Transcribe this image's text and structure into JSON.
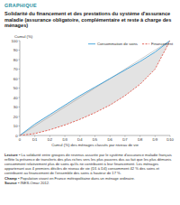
{
  "chart_data": {
    "type": "line",
    "kicker": "GRAPHIQUE",
    "title": "Solidarité du financement et des prestations du système d'assurance maladie (assurance obligatoire, complémentaire et reste à charge des ménages)",
    "y_label": "Cumul (%)",
    "x_label": "Cumul (%) des ménages classés par niveau de vie",
    "categories": [
      "0",
      "D1",
      "D2",
      "D3",
      "D4",
      "D5",
      "D6",
      "D7",
      "D8",
      "D9",
      "D10"
    ],
    "series": [
      {
        "name": "Consommation de soins",
        "color": "#3a9fd8",
        "line_style": "solid",
        "values": [
          0,
          12,
          22,
          32,
          42,
          51,
          60,
          69,
          78,
          88,
          100
        ]
      },
      {
        "name": "Financement",
        "color": "#e2574c",
        "line_style": "dashed",
        "values": [
          0,
          2,
          6,
          11,
          17,
          24,
          32,
          42,
          54,
          70,
          100
        ]
      }
    ],
    "ylim": [
      0,
      100
    ],
    "yticks": [
      0,
      10,
      20,
      30,
      40,
      50,
      60,
      70,
      80,
      90,
      100
    ],
    "grid": false,
    "legend": "top",
    "notes": [
      {
        "label": "Lecture •",
        "text": "La solidarité entre groupes de revenus assurée par le système d'assurance maladie français reflète la présence de transferts des plus riches vers les plus pauvres dus au fait que les plus démunis consomment relativement plus de soins qu'ils ne contribuent à leur financement. Les ménages appartenant aux 4 premiers déciles de niveau de vie (D1 à D4) consomment 42 % des soins et contribuent au financement de l'ensemble des soins à hauteur de 17 %."
      },
      {
        "label": "Champ •",
        "text": "Population vivant en France métropolitaine dans un ménage ordinaire."
      },
      {
        "label": "Source •",
        "text": "INES-Omar 2012."
      }
    ]
  }
}
